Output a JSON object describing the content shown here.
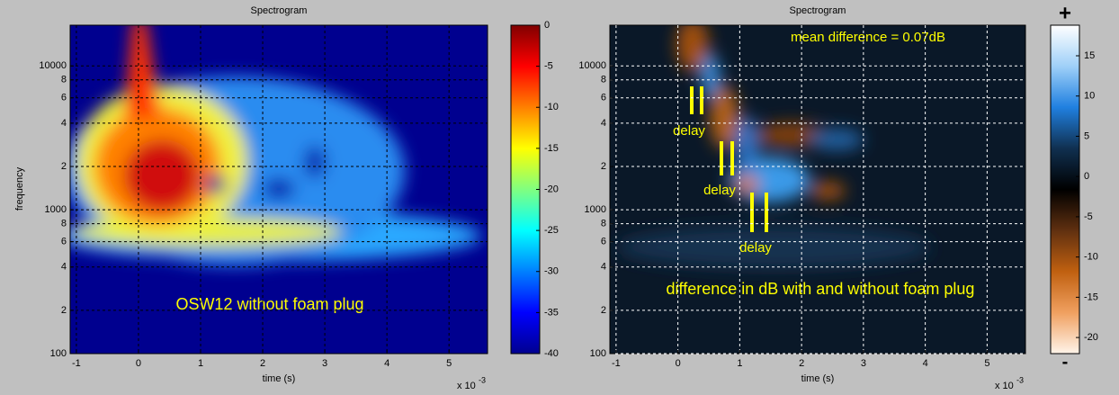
{
  "chart_data": [
    {
      "type": "heatmap",
      "title": "Spectrogram",
      "xlabel": "time (s)",
      "ylabel": "frequency",
      "x_scale_label": "x 10",
      "x_scale_exponent": "-3",
      "xlim": [
        -1.1,
        5.62
      ],
      "xticks": [
        -1,
        0,
        1,
        2,
        3,
        4,
        5
      ],
      "ylim": [
        100,
        19200
      ],
      "yscale": "log",
      "yticks": [
        100,
        {
          "value": 200,
          "label": "2"
        },
        {
          "value": 400,
          "label": "4"
        },
        {
          "value": 600,
          "label": "6"
        },
        {
          "value": 800,
          "label": "8"
        },
        1000,
        {
          "value": 2000,
          "label": "2"
        },
        {
          "value": 4000,
          "label": "4"
        },
        {
          "value": 6000,
          "label": "6"
        },
        {
          "value": 8000,
          "label": "8"
        },
        10000
      ],
      "grid": true,
      "grid_color": "#000000",
      "colorbar": {
        "lim": [
          -40,
          0
        ],
        "ticks": [
          0,
          -5,
          -10,
          -15,
          -20,
          -25,
          -30,
          -35,
          -40
        ],
        "colormap": [
          "#800000",
          "#ff0000",
          "#ff8000",
          "#ffff00",
          "#80ff80",
          "#00ffff",
          "#0080ff",
          "#0000ff",
          "#00008f"
        ]
      },
      "annotations": [
        "OSW12 without foam plug"
      ]
    },
    {
      "type": "heatmap",
      "title": "Spectrogram",
      "xlabel": "time (s)",
      "x_scale_label": "x 10",
      "x_scale_exponent": "-3",
      "xlim": [
        -1.1,
        5.62
      ],
      "xticks": [
        -1,
        0,
        1,
        2,
        3,
        4,
        5
      ],
      "ylim": [
        100,
        19200
      ],
      "yscale": "log",
      "yticks": [
        100,
        {
          "value": 200,
          "label": "2"
        },
        {
          "value": 400,
          "label": "4"
        },
        {
          "value": 600,
          "label": "6"
        },
        {
          "value": 800,
          "label": "8"
        },
        1000,
        {
          "value": 2000,
          "label": "2"
        },
        {
          "value": 4000,
          "label": "4"
        },
        {
          "value": 6000,
          "label": "6"
        },
        {
          "value": 8000,
          "label": "8"
        },
        10000
      ],
      "grid": true,
      "grid_color": "#ffffff",
      "colorbar": {
        "lim": [
          -22,
          18.8
        ],
        "ticks": [
          15,
          10,
          5,
          0,
          -5,
          -10,
          -15,
          -20
        ],
        "top_label": "+",
        "bottom_label": "-",
        "colormap": [
          "#ffffff",
          "#9fd0f8",
          "#2080e0",
          "#103050",
          "#000000",
          "#603010",
          "#c06010",
          "#f0a060",
          "#fff4ea"
        ]
      },
      "annotations": [
        "mean difference = 0.07dB",
        "delay",
        "delay",
        "delay",
        "difference in dB with and without foam plug"
      ]
    }
  ]
}
